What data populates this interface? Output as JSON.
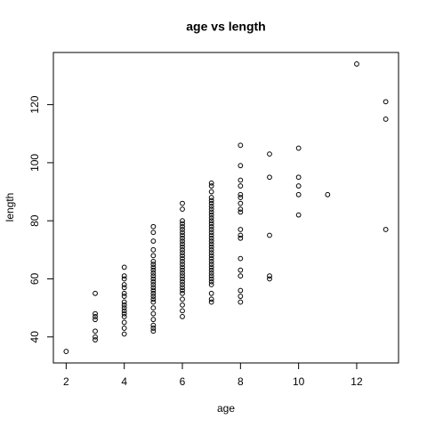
{
  "chart_data": {
    "type": "scatter",
    "title": "age vs length",
    "xlabel": "age",
    "ylabel": "length",
    "x": [
      2,
      3,
      3,
      3,
      3,
      3,
      3,
      3,
      4,
      4,
      4,
      4,
      4,
      4,
      4,
      4,
      4,
      4,
      4,
      4,
      4,
      4,
      4,
      4,
      5,
      5,
      5,
      5,
      5,
      5,
      5,
      5,
      5,
      5,
      5,
      5,
      5,
      5,
      5,
      5,
      5,
      5,
      5,
      5,
      5,
      5,
      5,
      5,
      5,
      5,
      6,
      6,
      6,
      6,
      6,
      6,
      6,
      6,
      6,
      6,
      6,
      6,
      6,
      6,
      6,
      6,
      6,
      6,
      6,
      6,
      6,
      6,
      6,
      6,
      6,
      6,
      6,
      6,
      6,
      6,
      6,
      6,
      7,
      7,
      7,
      7,
      7,
      7,
      7,
      7,
      7,
      7,
      7,
      7,
      7,
      7,
      7,
      7,
      7,
      7,
      7,
      7,
      7,
      7,
      7,
      7,
      7,
      7,
      7,
      7,
      7,
      7,
      7,
      7,
      7,
      7,
      7,
      7,
      7,
      8,
      8,
      8,
      8,
      8,
      8,
      8,
      8,
      8,
      8,
      8,
      8,
      8,
      8,
      8,
      8,
      8,
      8,
      9,
      9,
      9,
      9,
      9,
      10,
      10,
      10,
      10,
      10,
      11,
      12,
      13,
      13,
      13
    ],
    "values": [
      35,
      55,
      48,
      47,
      46,
      42,
      40,
      39,
      64,
      61,
      60,
      58,
      57,
      55,
      54,
      52,
      51,
      50,
      49,
      48,
      47,
      45,
      43,
      41,
      78,
      76,
      73,
      70,
      68,
      66,
      65,
      64,
      63,
      62,
      61,
      60,
      59,
      58,
      57,
      56,
      55,
      54,
      53,
      52,
      50,
      48,
      46,
      44,
      43,
      42,
      86,
      84,
      80,
      79,
      78,
      77,
      76,
      75,
      74,
      73,
      72,
      71,
      70,
      69,
      68,
      67,
      66,
      65,
      64,
      63,
      62,
      61,
      60,
      59,
      58,
      57,
      56,
      55,
      53,
      51,
      49,
      47,
      93,
      92,
      90,
      88,
      87,
      86,
      85,
      84,
      83,
      82,
      81,
      80,
      79,
      78,
      77,
      76,
      75,
      74,
      73,
      72,
      71,
      70,
      69,
      68,
      67,
      66,
      65,
      64,
      63,
      62,
      61,
      60,
      59,
      58,
      55,
      53,
      52,
      106,
      99,
      94,
      92,
      89,
      88,
      86,
      84,
      83,
      77,
      75,
      74,
      67,
      63,
      61,
      56,
      54,
      52,
      103,
      95,
      75,
      61,
      60,
      105,
      95,
      92,
      89,
      82,
      89,
      134,
      121,
      115,
      77
    ],
    "color": "#000000",
    "xlim": [
      1.56,
      13.44
    ],
    "xticks": [
      2,
      4,
      6,
      8,
      10,
      12
    ],
    "ylim": [
      31.04,
      137.96
    ],
    "yticks": [
      40,
      60,
      80,
      100,
      120
    ]
  }
}
